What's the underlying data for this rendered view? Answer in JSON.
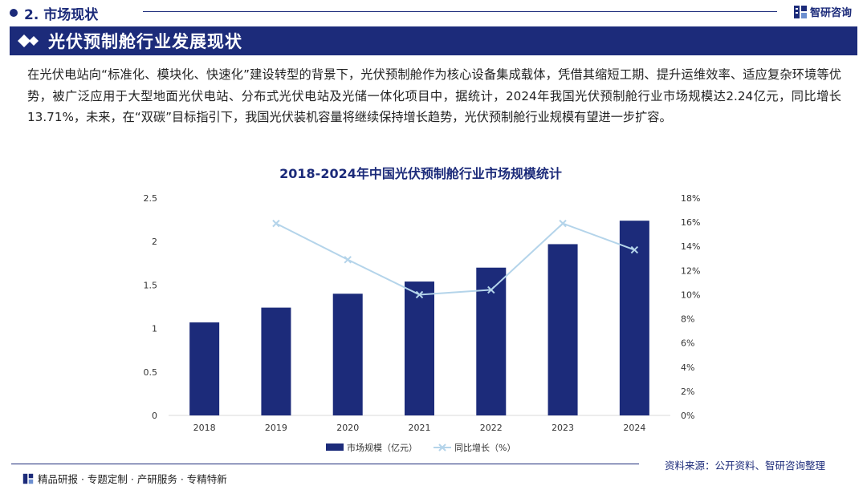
{
  "header": {
    "section_title": "2. 市场现状",
    "logo_text": "智研咨询"
  },
  "banner": {
    "title": "光伏预制舱行业发展现状"
  },
  "intro": {
    "text": "在光伏电站向“标准化、模块化、快速化”建设转型的背景下，光伏预制舱作为核心设备集成载体，凭借其缩短工期、提升运维效率、适应复杂环境等优势，被广泛应用于大型地面光伏电站、分布式光伏电站及光储一体化项目中，据统计，2024年我国光伏预制舱行业市场规模达2.24亿元，同比增长13.71%，未来，在“双碳”目标指引下，我国光伏装机容量将继续保持增长趋势，光伏预制舱行业规模有望进一步扩容。"
  },
  "chart_data": {
    "type": "bar",
    "title": "2018-2024年中国光伏预制舱行业市场规模统计",
    "categories": [
      "2018",
      "2019",
      "2020",
      "2021",
      "2022",
      "2023",
      "2024"
    ],
    "series": [
      {
        "name": "市场规模（亿元）",
        "type": "bar",
        "axis": "left",
        "color": "#1c2b7a",
        "values": [
          1.07,
          1.24,
          1.4,
          1.54,
          1.7,
          1.97,
          2.24
        ]
      },
      {
        "name": "同比增长（%）",
        "type": "line",
        "axis": "right",
        "color": "#b4d4ea",
        "values": [
          null,
          15.9,
          12.9,
          10.0,
          10.4,
          15.9,
          13.71
        ]
      }
    ],
    "y_left": {
      "min": 0,
      "max": 2.5,
      "ticks": [
        "0",
        "0.5",
        "1",
        "1.5",
        "2",
        "2.5"
      ]
    },
    "y_right": {
      "min": 0,
      "max": 18,
      "ticks": [
        "0%",
        "2%",
        "4%",
        "6%",
        "8%",
        "10%",
        "12%",
        "14%",
        "16%",
        "18%"
      ]
    },
    "legend_position": "bottom"
  },
  "footer": {
    "tagline": "精品研报 · 专题定制 · 产研服务 · 专精特新",
    "source": "资料来源：公开资料、智研咨询整理"
  },
  "colors": {
    "brand": "#1c2b7a",
    "line": "#b4d4ea"
  }
}
